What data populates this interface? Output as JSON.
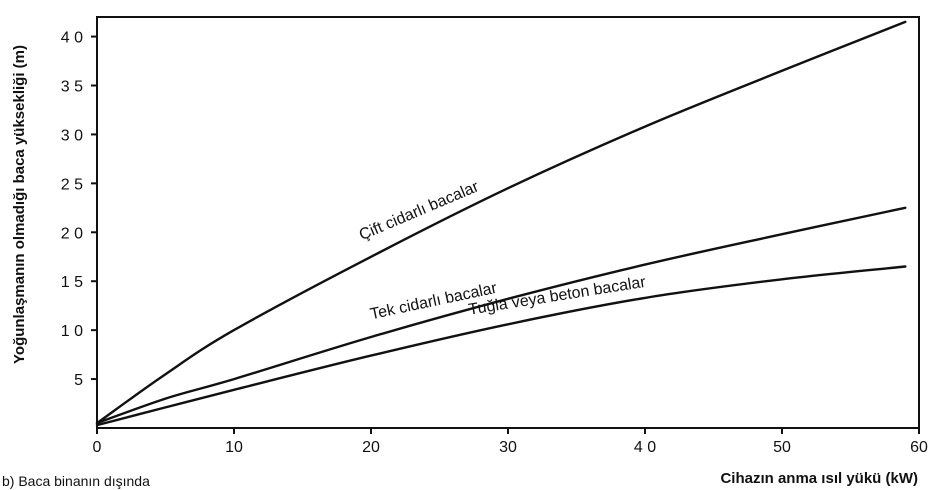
{
  "chart_data": {
    "type": "line",
    "title": "",
    "xlabel": "Cihazın anma ısıl yükü (kW)",
    "ylabel": "Yoğunlaşmanın olmadığı baca yüksekliği (m)",
    "caption": "b) Baca binanın dışında",
    "xlim": [
      0,
      60
    ],
    "ylim": [
      0,
      42
    ],
    "x_ticks": [
      0,
      10,
      20,
      30,
      40,
      50,
      60
    ],
    "x_tick_labels": [
      "0",
      "10",
      "20",
      "30",
      "4 0",
      "50",
      "60"
    ],
    "y_ticks": [
      5,
      10,
      15,
      20,
      25,
      30,
      35,
      40
    ],
    "y_tick_labels": [
      "5",
      "1 0",
      "1 5",
      "2 0",
      "2 5",
      "3 0",
      "3 5",
      "4 0"
    ],
    "series": [
      {
        "name": "Çift cidarlı bacalar",
        "x": [
          0,
          5,
          10,
          20,
          30,
          40,
          50,
          59
        ],
        "y": [
          0.5,
          5.5,
          10.0,
          17.5,
          24.5,
          30.8,
          36.5,
          41.5
        ]
      },
      {
        "name": "Tek cidarlı bacalar",
        "x": [
          0,
          5,
          10,
          20,
          30,
          40,
          50,
          59
        ],
        "y": [
          0.5,
          3.0,
          5.0,
          9.3,
          13.2,
          16.7,
          19.8,
          22.5
        ]
      },
      {
        "name": "Tuğla veya beton bacalar",
        "x": [
          0,
          5,
          10,
          20,
          30,
          40,
          50,
          59
        ],
        "y": [
          0.3,
          2.1,
          3.9,
          7.4,
          10.6,
          13.3,
          15.2,
          16.5
        ]
      }
    ]
  }
}
